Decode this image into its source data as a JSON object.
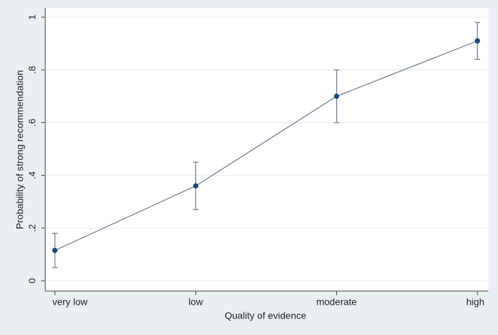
{
  "chart_data": {
    "type": "line",
    "x_label": "Quality of evidence",
    "y_label": "Probability of strong recommendation",
    "categories": [
      "very low",
      "low",
      "moderate",
      "high"
    ],
    "values": [
      0.115,
      0.36,
      0.7,
      0.91
    ],
    "lower": [
      0.05,
      0.27,
      0.6,
      0.84
    ],
    "upper": [
      0.18,
      0.45,
      0.8,
      0.98
    ],
    "color": "#1a476f",
    "line_color": "#6e7f8e",
    "ylim": [
      0,
      1
    ],
    "yticks": [
      0,
      {
        "value": 0.2,
        "label": ".2"
      },
      {
        "value": 0.4,
        "label": ".4"
      },
      {
        "value": 0.6,
        "label": ".6"
      },
      {
        "value": 0.8,
        "label": ".8"
      },
      1
    ],
    "grid": true
  }
}
